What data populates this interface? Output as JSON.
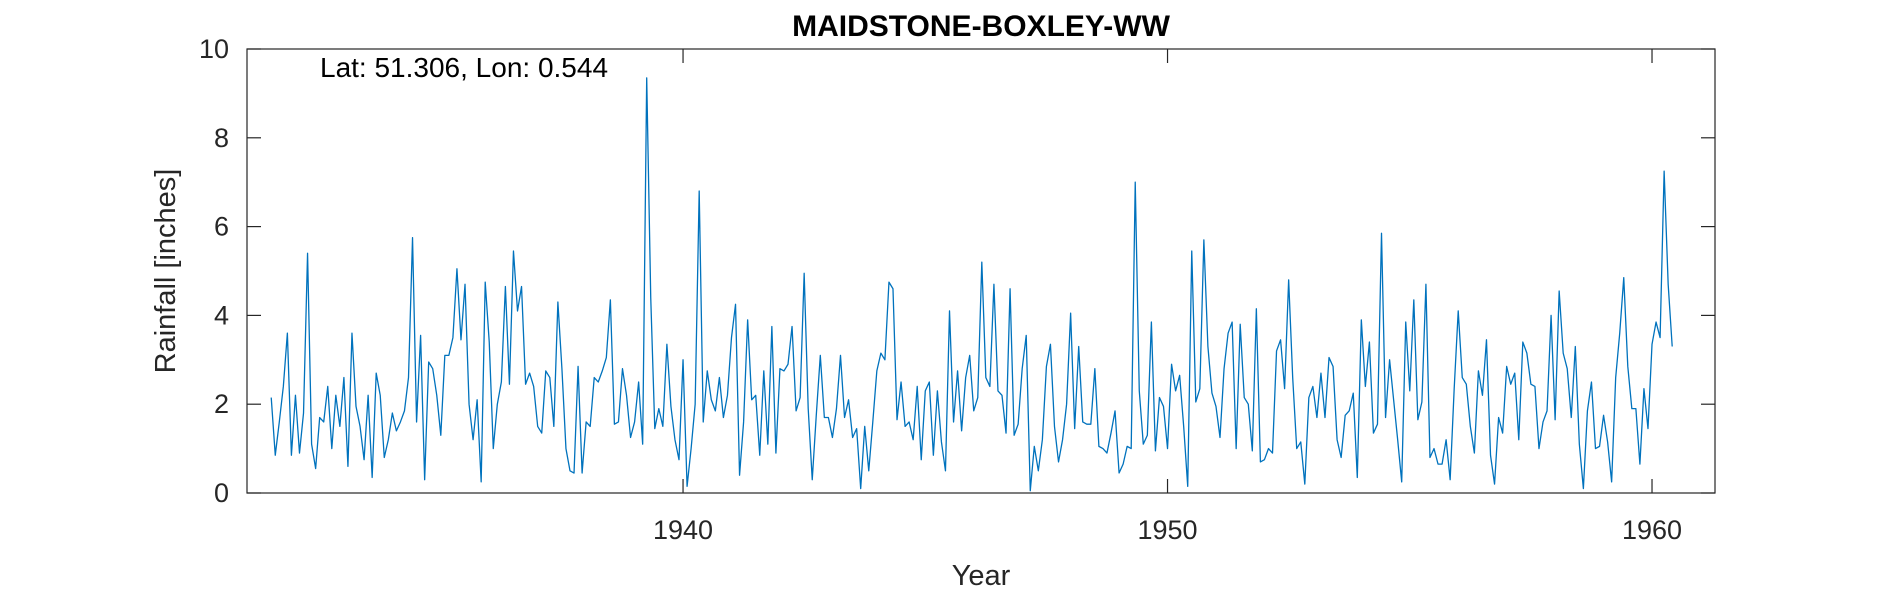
{
  "chart_data": {
    "type": "line",
    "title": "MAIDSTONE-BOXLEY-WW",
    "xlabel": "Year",
    "ylabel": "Rainfall [inches]",
    "annotation": "Lat: 51.306, Lon: 0.544",
    "xlim": [
      1931.0,
      1961.3
    ],
    "ylim": [
      0,
      10
    ],
    "xticks": [
      1940,
      1950,
      1960
    ],
    "xtick_labels": [
      "1940",
      "1950",
      "1960"
    ],
    "yticks": [
      0,
      2,
      4,
      6,
      8,
      10
    ],
    "ytick_labels": [
      "0",
      "2",
      "4",
      "6",
      "8",
      "10"
    ],
    "grid": false,
    "box": true,
    "series": [
      {
        "color": "#0072BD",
        "x_start": 1931.5,
        "x_step_months": 1,
        "values": [
          2.15,
          0.85,
          1.6,
          2.4,
          3.6,
          0.85,
          2.2,
          0.9,
          1.8,
          5.4,
          1.1,
          0.55,
          1.7,
          1.6,
          2.4,
          1.0,
          2.2,
          1.5,
          2.6,
          0.6,
          3.6,
          1.95,
          1.5,
          0.75,
          2.2,
          0.35,
          2.7,
          2.2,
          0.8,
          1.2,
          1.8,
          1.4,
          1.6,
          1.85,
          2.6,
          5.75,
          1.6,
          3.55,
          0.3,
          2.95,
          2.8,
          2.2,
          1.3,
          3.1,
          3.1,
          3.5,
          5.05,
          3.45,
          4.7,
          2.0,
          1.2,
          2.1,
          0.25,
          4.75,
          3.4,
          1.0,
          2.0,
          2.5,
          4.65,
          2.45,
          5.45,
          4.1,
          4.65,
          2.45,
          2.7,
          2.4,
          1.5,
          1.35,
          2.75,
          2.6,
          1.5,
          4.3,
          2.8,
          1.0,
          0.5,
          0.45,
          2.85,
          0.45,
          1.6,
          1.5,
          2.6,
          2.5,
          2.75,
          3.05,
          4.35,
          1.55,
          1.6,
          2.8,
          2.2,
          1.25,
          1.6,
          2.5,
          1.1,
          9.35,
          4.4,
          1.45,
          1.9,
          1.5,
          3.35,
          1.95,
          1.2,
          0.75,
          3.0,
          0.15,
          1.0,
          2.0,
          6.8,
          1.6,
          2.75,
          2.1,
          1.85,
          2.6,
          1.7,
          2.2,
          3.5,
          4.25,
          0.4,
          1.6,
          3.9,
          2.1,
          2.2,
          0.85,
          2.75,
          1.1,
          3.75,
          0.9,
          2.8,
          2.75,
          2.9,
          3.75,
          1.85,
          2.15,
          4.95,
          1.9,
          0.3,
          1.75,
          3.1,
          1.7,
          1.7,
          1.25,
          1.9,
          3.1,
          1.7,
          2.1,
          1.25,
          1.45,
          0.1,
          1.5,
          0.5,
          1.6,
          2.75,
          3.15,
          3.0,
          4.75,
          4.6,
          1.65,
          2.5,
          1.5,
          1.6,
          1.2,
          2.4,
          0.75,
          2.3,
          2.5,
          0.85,
          2.3,
          1.15,
          0.5,
          4.1,
          1.6,
          2.75,
          1.4,
          2.6,
          3.1,
          1.85,
          2.15,
          5.2,
          2.6,
          2.4,
          4.7,
          2.3,
          2.2,
          1.35,
          4.6,
          1.3,
          1.55,
          2.8,
          3.55,
          0.05,
          1.05,
          0.5,
          1.2,
          2.85,
          3.35,
          1.5,
          0.7,
          1.2,
          2.0,
          4.05,
          1.45,
          3.3,
          1.6,
          1.55,
          1.55,
          2.8,
          1.05,
          1.0,
          0.9,
          1.35,
          1.85,
          0.45,
          0.65,
          1.05,
          1.0,
          7.0,
          2.3,
          1.1,
          1.3,
          3.85,
          0.95,
          2.15,
          1.95,
          1.0,
          2.9,
          2.3,
          2.65,
          1.5,
          0.15,
          5.45,
          2.05,
          2.35,
          5.7,
          3.3,
          2.25,
          1.95,
          1.25,
          2.8,
          3.6,
          3.85,
          1.0,
          3.8,
          2.15,
          2.0,
          0.95,
          4.15,
          0.7,
          0.75,
          1.0,
          0.9,
          3.2,
          3.45,
          2.35,
          4.8,
          2.6,
          1.0,
          1.15,
          0.2,
          2.15,
          2.4,
          1.7,
          2.7,
          1.7,
          3.05,
          2.85,
          1.2,
          0.8,
          1.75,
          1.85,
          2.25,
          0.35,
          3.9,
          2.4,
          3.4,
          1.35,
          1.55,
          5.85,
          1.7,
          3.0,
          2.1,
          1.2,
          0.25,
          3.85,
          2.3,
          4.35,
          1.65,
          2.05,
          4.7,
          0.8,
          1.0,
          0.65,
          0.65,
          1.2,
          0.3,
          2.35,
          4.1,
          2.6,
          2.45,
          1.5,
          0.9,
          2.75,
          2.2,
          3.45,
          0.85,
          0.2,
          1.7,
          1.35,
          2.85,
          2.45,
          2.7,
          1.2,
          3.4,
          3.15,
          2.45,
          2.4,
          1.0,
          1.6,
          1.85,
          4.0,
          1.65,
          4.55,
          3.15,
          2.8,
          1.7,
          3.3,
          1.1,
          0.1,
          1.85,
          2.5,
          1.0,
          1.05,
          1.75,
          1.15,
          0.25,
          2.6,
          3.6,
          4.85,
          2.85,
          1.9,
          1.9,
          0.65,
          2.35,
          1.45,
          3.35,
          3.85,
          3.5,
          7.25,
          4.7,
          3.3
        ]
      }
    ]
  }
}
